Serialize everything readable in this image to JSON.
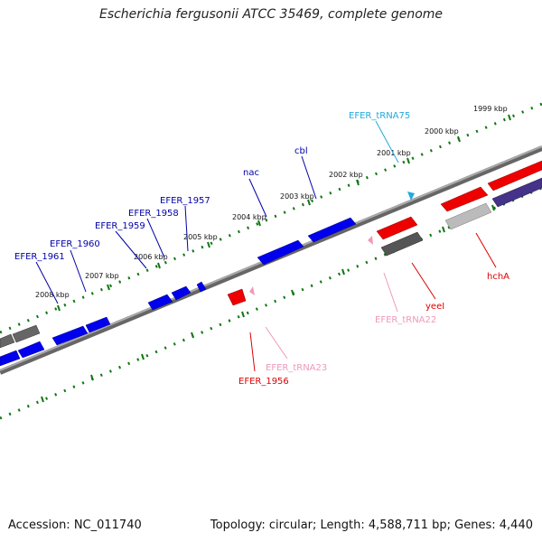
{
  "title": "Escherichia fergusonii ATCC 35469, complete genome",
  "footer": {
    "accession": "Accession: NC_011740",
    "topology": "Topology: circular; Length: 4,588,711 bp; Genes: 4,440"
  },
  "colors": {
    "forward_gene": "#0000ee",
    "reverse_gene": "#ee0000",
    "trna_forward": "#22aadd",
    "trna_reverse": "#ee99bb",
    "other_gene": "#666666",
    "light_gene": "#bbbbbb",
    "purple_gene": "#443388",
    "tick_color": "#117711",
    "backbone": "#777777"
  },
  "kbp_markers": [
    "1999 kbp",
    "2000 kbp",
    "2001 kbp",
    "2002 kbp",
    "2003 kbp",
    "2004 kbp",
    "2005 kbp",
    "2006 kbp",
    "2007 kbp",
    "2008 kbp"
  ],
  "gene_labels": {
    "efer_1961": "EFER_1961",
    "efer_1960": "EFER_1960",
    "efer_1959": "EFER_1959",
    "efer_1958": "EFER_1958",
    "efer_1957": "EFER_1957",
    "nac": "nac",
    "cbl": "cbl",
    "efer_trna75": "EFER_tRNA75",
    "efer_1956": "EFER_1956",
    "efer_trna23": "EFER_tRNA23",
    "efer_trna22": "EFER_tRNA22",
    "yeel": "yeeI",
    "hcha": "hchA"
  }
}
